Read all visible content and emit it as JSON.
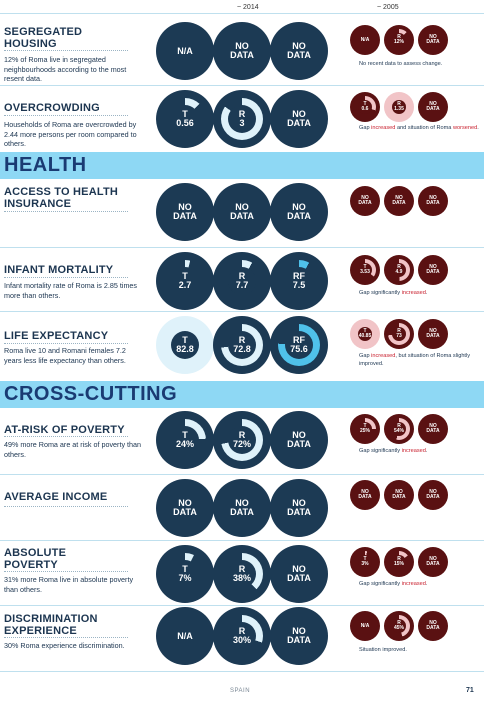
{
  "header": {
    "col_2014": "~ 2014",
    "col_2005": "~ 2005"
  },
  "sections": {
    "health": "HEALTH",
    "cross": "CROSS-CUTTING"
  },
  "rows": {
    "segregated": {
      "title1": "SEGREGATED",
      "title2": "HOUSING",
      "desc": "12% of Roma live in segregated neighbourhoods according to the most resent data.",
      "b1": "N/A",
      "b2a": "NO",
      "b2b": "DATA",
      "b3a": "NO",
      "b3b": "DATA",
      "s1": "N/A",
      "s2a": "R",
      "s2b": "12%",
      "s3a": "NO",
      "s3b": "DATA",
      "note": "No recent data to assess change."
    },
    "overcrowding": {
      "title": "OVERCROWDING",
      "desc": "Households of Roma are overcrowded by 2.44 more persons per room compared to others.",
      "b1a": "T",
      "b1b": "0.56",
      "b2a": "R",
      "b2b": "3",
      "b3a": "NO",
      "b3b": "DATA",
      "s1a": "T",
      "s1b": "0.6",
      "s2a": "R",
      "s2b": "1.35",
      "s3a": "NO",
      "s3b": "DATA",
      "note_pre": "Gap ",
      "note_red1": "increased",
      "note_mid": " and situation of Roma ",
      "note_red2": "worsened",
      "note_end": "."
    },
    "insurance": {
      "title1": "ACCESS TO HEALTH",
      "title2": "INSURANCE",
      "b1a": "NO",
      "b1b": "DATA",
      "b2a": "NO",
      "b2b": "DATA",
      "b3a": "NO",
      "b3b": "DATA",
      "s1a": "NO",
      "s1b": "DATA",
      "s2a": "NO",
      "s2b": "DATA",
      "s3a": "NO",
      "s3b": "DATA"
    },
    "infant": {
      "title": "INFANT MORTALITY",
      "desc": "Infant mortality rate of Roma is 2.85 times more than others.",
      "b1a": "T",
      "b1b": "2.7",
      "b2a": "R",
      "b2b": "7.7",
      "b3a": "RF",
      "b3b": "7.5",
      "s1a": "T",
      "s1b": "3.53",
      "s2a": "R",
      "s2b": "4.9",
      "s3a": "NO",
      "s3b": "DATA",
      "note_pre": "Gap significantly ",
      "note_red": "increased",
      "note_end": "."
    },
    "life": {
      "title": "LIFE EXPECTANCY",
      "desc": "Roma live 10 and Romani females 7.2 years less life expectancy than others.",
      "b1a": "T",
      "b1b": "82.8",
      "b2a": "R",
      "b2b": "72.8",
      "b3a": "RF",
      "b3b": "75.6",
      "s1a": "T",
      "s1b": "40.85",
      "s2a": "R",
      "s2b": "73",
      "s3a": "NO",
      "s3b": "DATA",
      "note_pre": "Gap ",
      "note_red": "increased",
      "note_end": ", but situation of Roma slightly improved."
    },
    "poverty": {
      "title": "AT-RISK OF POVERTY",
      "desc": "49% more Roma are at risk of poverty than others.",
      "b1a": "T",
      "b1b": "24%",
      "b2a": "R",
      "b2b": "72%",
      "b3a": "NO",
      "b3b": "DATA",
      "s1a": "T",
      "s1b": "25%",
      "s2a": "R",
      "s2b": "54%",
      "s3a": "NO",
      "s3b": "DATA",
      "note_pre": "Gap significantly ",
      "note_red": "increased",
      "note_end": "."
    },
    "income": {
      "title": "AVERAGE INCOME",
      "b1a": "NO",
      "b1b": "DATA",
      "b2a": "NO",
      "b2b": "DATA",
      "b3a": "NO",
      "b3b": "DATA",
      "s1a": "NO",
      "s1b": "DATA",
      "s2a": "NO",
      "s2b": "DATA",
      "s3a": "NO",
      "s3b": "DATA"
    },
    "absolute": {
      "title1": "ABSOLUTE",
      "title2": "POVERTY",
      "desc": "31% more Roma live in absolute poverty than others.",
      "b1a": "T",
      "b1b": "7%",
      "b2a": "R",
      "b2b": "38%",
      "b3a": "NO",
      "b3b": "DATA",
      "s1a": "T",
      "s1b": "3%",
      "s2a": "R",
      "s2b": "15%",
      "s3a": "NO",
      "s3b": "DATA",
      "note_pre": "Gap significantly ",
      "note_red": "increased",
      "note_end": "."
    },
    "discrimination": {
      "title1": "DISCRIMINATION",
      "title2": "EXPERIENCE",
      "desc": "30% Roma experience discrimination.",
      "b1": "N/A",
      "b2a": "R",
      "b2b": "30%",
      "b3a": "NO",
      "b3b": "DATA",
      "s1": "N/A",
      "s2a": "R",
      "s2b": "45%",
      "s3a": "NO",
      "s3b": "DATA",
      "note": "Situation improved."
    }
  },
  "footer": {
    "country": "SPAIN",
    "page": "71"
  },
  "colors": {
    "dark_circle": "#1c3a54",
    "light_ring": "#dff2fa",
    "bright_ring": "#4fc1ea",
    "maroon": "#5a1112",
    "pink": "#f1c4c7",
    "section_band": "#8ed8f4",
    "accent_red": "#c81e2c"
  }
}
